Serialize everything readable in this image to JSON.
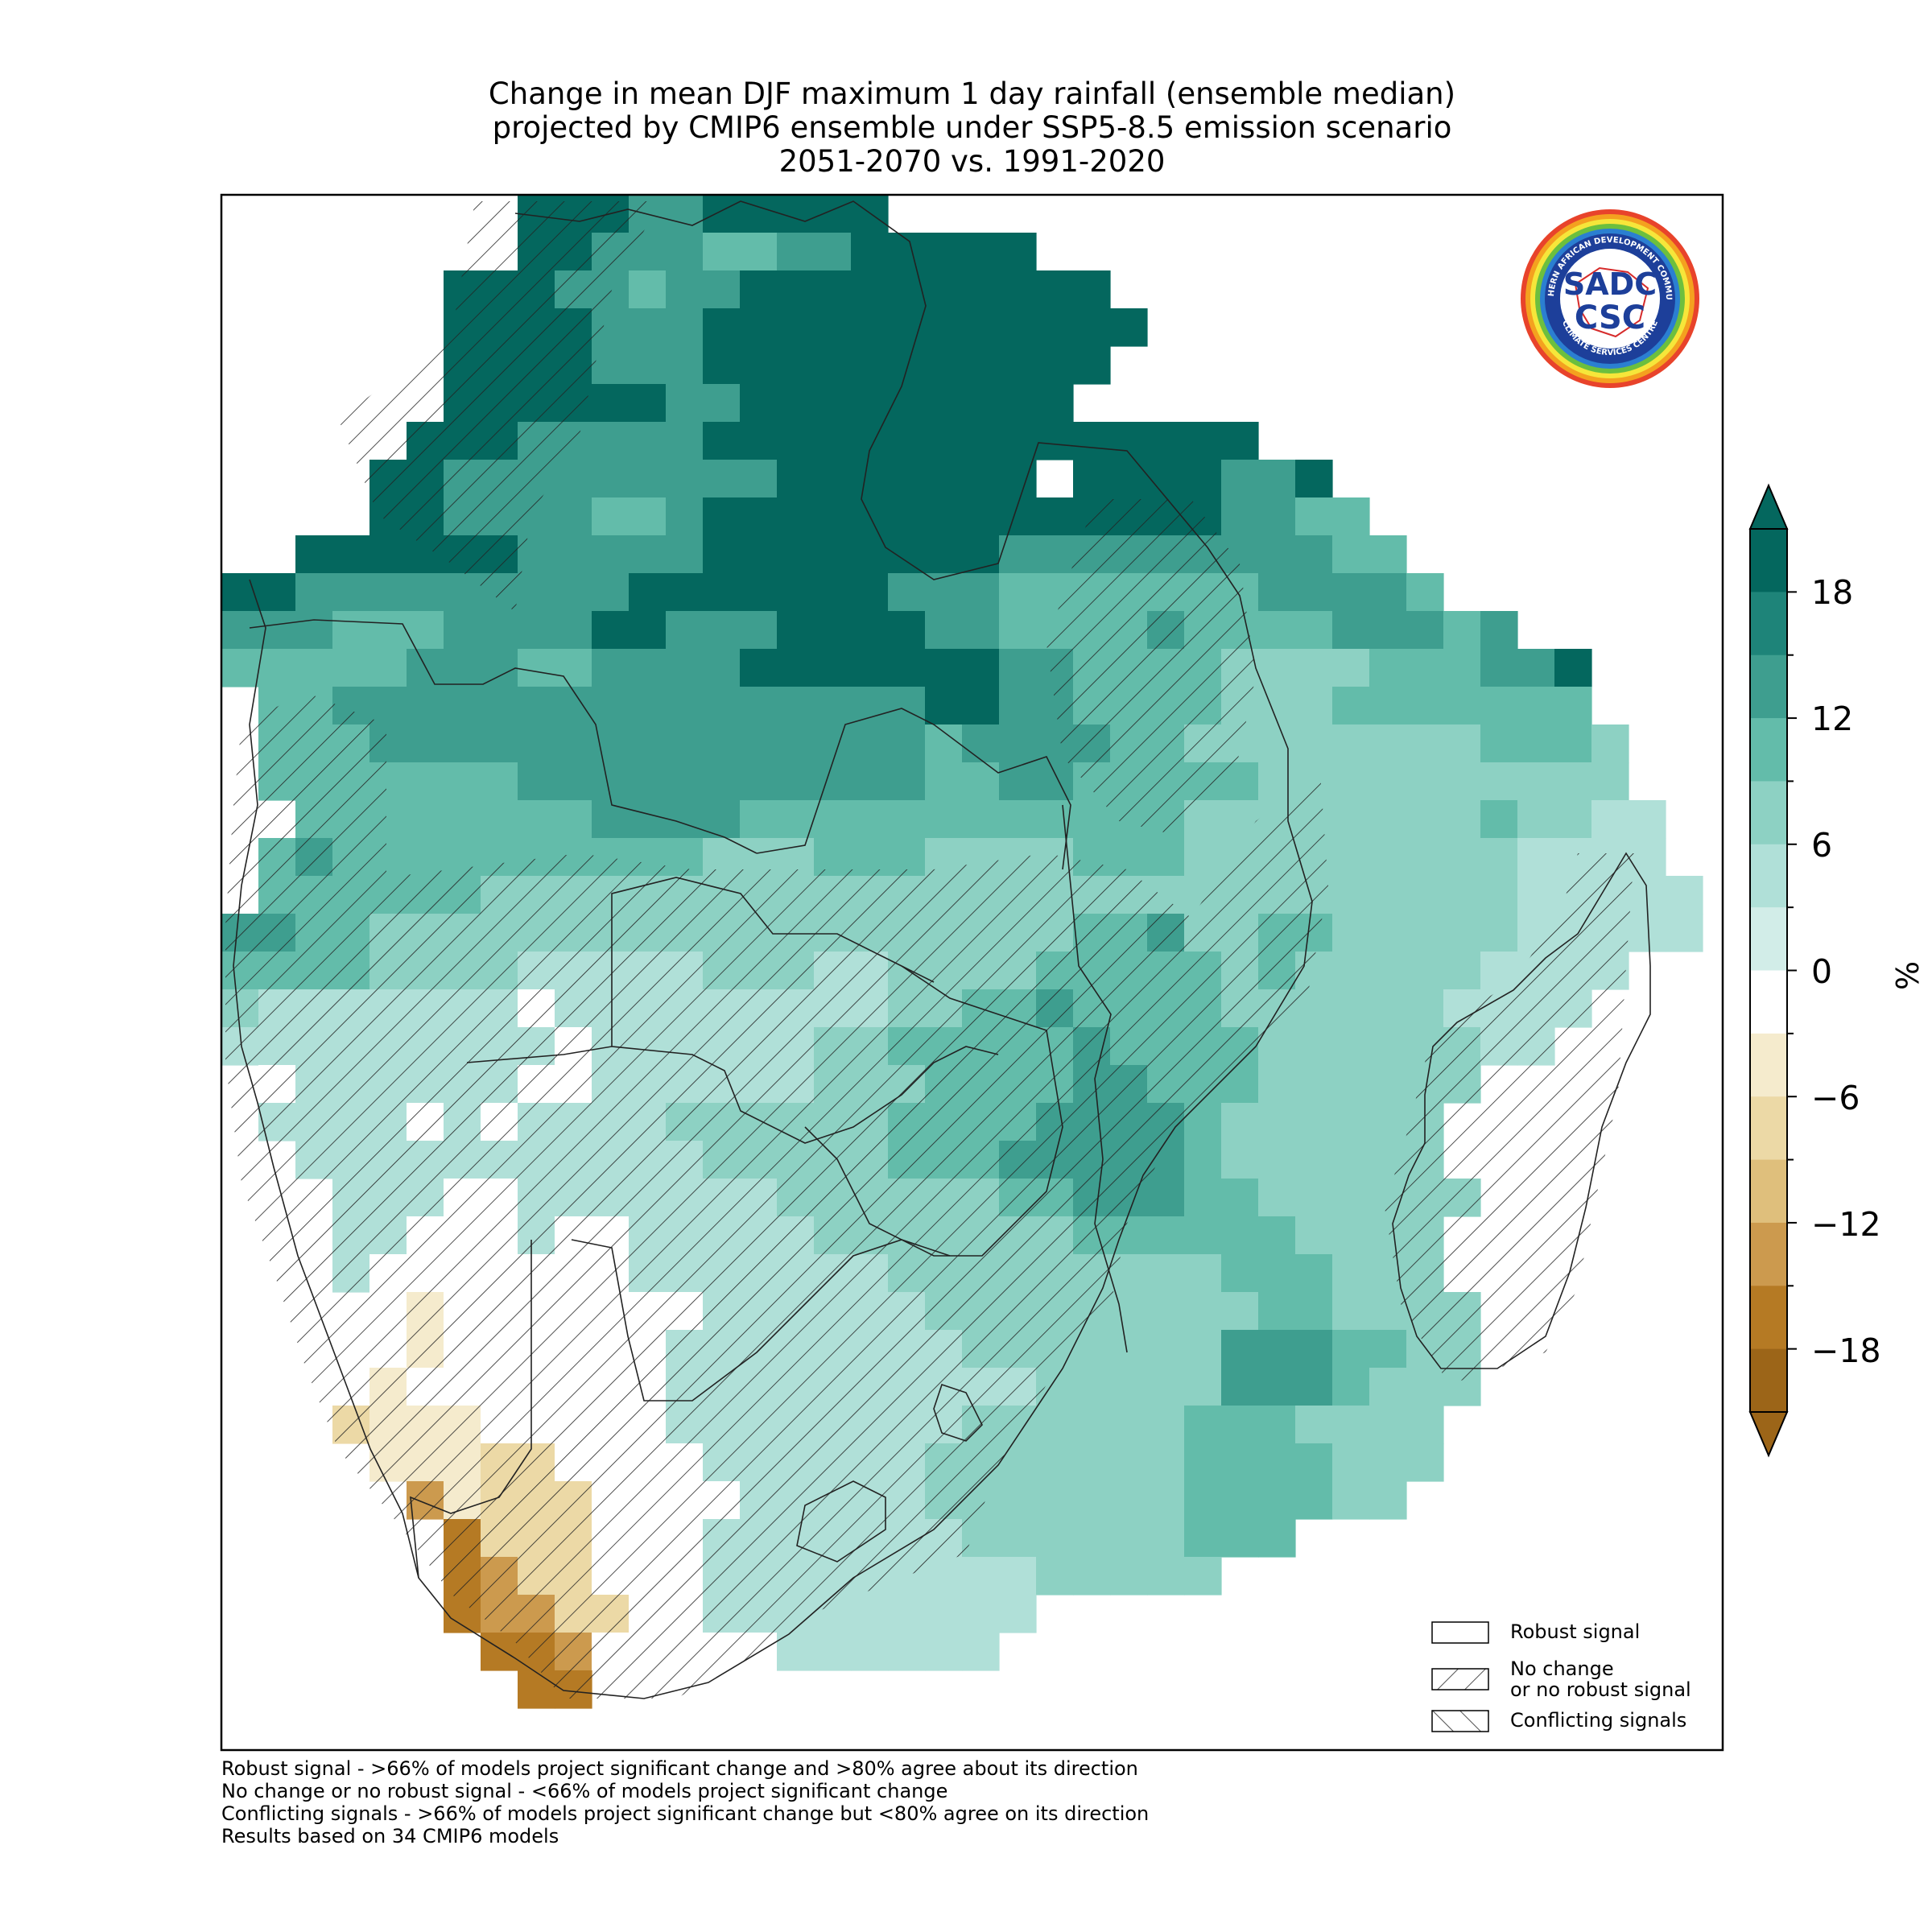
{
  "title": {
    "line1": "Change in mean DJF maximum 1 day rainfall (ensemble median)",
    "line2": "projected by CMIP6 ensemble under SSP5-8.5 emission scenario",
    "line3": "2051-2070 vs. 1991-2020"
  },
  "colorbar": {
    "unit": "%",
    "ticks": [
      "18",
      "12",
      "6",
      "0",
      "−6",
      "−12",
      "−18"
    ],
    "colors": [
      "#9c6518",
      "#b57a24",
      "#cc9a4e",
      "#dfbf7c",
      "#ecd9a6",
      "#f5ebcd",
      "#ffffff",
      "#d2ede8",
      "#b0e0d8",
      "#8dd1c3",
      "#63bcaa",
      "#3e9e8f",
      "#1e8479",
      "#04675e"
    ]
  },
  "legend": {
    "robust": "Robust signal",
    "no_change": "No change\nor no robust signal",
    "conflicting": "Conflicting signals"
  },
  "footnotes": [
    "Robust signal - >66% of models project significant change and >80% agree about its direction",
    "No change or no robust signal - <66% of models project significant change",
    "Conflicting signals - >66% of models project significant change but <80% agree on its direction",
    "Results based on 34 CMIP6 models"
  ],
  "logo": {
    "top_text": "SOUTHERN AFRICAN DEVELOPMENT COMMUNITY",
    "bottom_text": "CLIMATE SERVICES CENTRE",
    "mark1": "SADC",
    "mark2": "CSC"
  }
}
